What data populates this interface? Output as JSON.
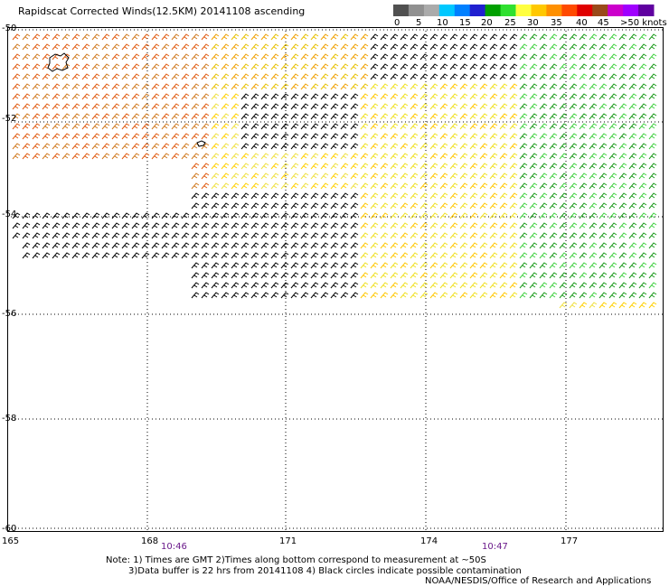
{
  "title": "Rapidscat Corrected Winds(12.5KM) 20141108 ascending",
  "legend": {
    "colors": [
      "#505050",
      "#909090",
      "#ababab",
      "#00c8ff",
      "#0080ff",
      "#2020d0",
      "#00a000",
      "#30e030",
      "#ffff40",
      "#ffc800",
      "#ff9000",
      "#ff4a00",
      "#e00000",
      "#9a4a1a",
      "#cc00cc",
      "#a000ff",
      "#6000a0"
    ],
    "labels": [
      "0",
      "5",
      "10",
      "15",
      "20",
      "25",
      "30",
      "35",
      "40",
      "45",
      ">50 knots"
    ]
  },
  "lat_labels": [
    "-50",
    "-52",
    "-54",
    "-56",
    "-58",
    "-60"
  ],
  "lon_labels": [
    "165",
    "168",
    "171",
    "174",
    "177"
  ],
  "time_labels": [
    "10:46",
    "10:47"
  ],
  "notes": {
    "line1": "Note: 1) Times are GMT 2)Times along bottom correspond to measurement at ~50S",
    "line2": "3)Data buffer is 22 hrs from 20141108 4) Black circles indicate possible contamination",
    "line3": "NOAA/NESDIS/Office of Research and Applications"
  }
}
